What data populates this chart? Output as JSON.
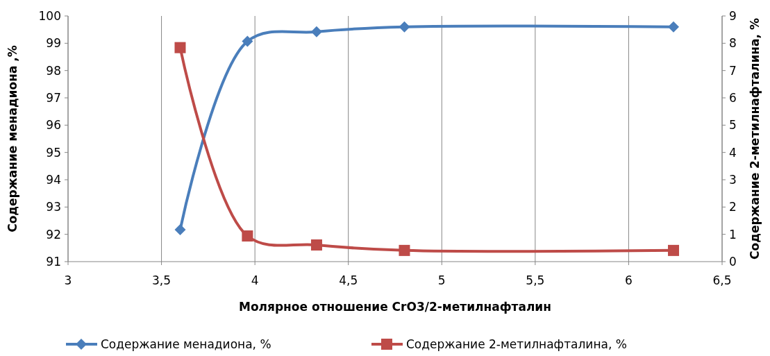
{
  "chart_data": {
    "type": "line",
    "xlabel": "Молярное отношение CrO3/2-метилнафталин",
    "ylabel": "Содержание менадиона ,%",
    "y2label": "Содержание 2-метилнафталина, %",
    "x": [
      3.6,
      3.96,
      4.33,
      4.8,
      6.24
    ],
    "series": [
      {
        "name": "Содержание менадиона, %",
        "color": "#4a7ebb",
        "values": [
          92.17,
          99.07,
          99.42,
          99.6,
          99.6
        ],
        "marker": "diamond"
      },
      {
        "name": "Содержание 2-метилнафталина, %",
        "color": "#be4b48",
        "values": [
          7.84,
          0.94,
          0.61,
          0.41,
          0.41
        ],
        "axis": "y2",
        "marker": "square"
      }
    ],
    "xlim": [
      3,
      6.5
    ],
    "xticks": [
      3,
      {
        "value": 3.5,
        "label": "3,5"
      },
      4,
      {
        "value": 4.5,
        "label": "4,5"
      },
      5,
      {
        "value": 5.5,
        "label": "5,5"
      },
      6,
      {
        "value": 6.5,
        "label": "6,5"
      }
    ],
    "ylim": [
      91,
      100
    ],
    "yticks": [
      91,
      92,
      93,
      94,
      95,
      96,
      97,
      98,
      99,
      100
    ],
    "y2lim": [
      0,
      9
    ],
    "y2ticks": [
      0,
      1,
      2,
      3,
      4,
      5,
      6,
      7,
      8,
      9
    ],
    "grid": "x",
    "legend": "bottom",
    "line_style": "solid"
  }
}
